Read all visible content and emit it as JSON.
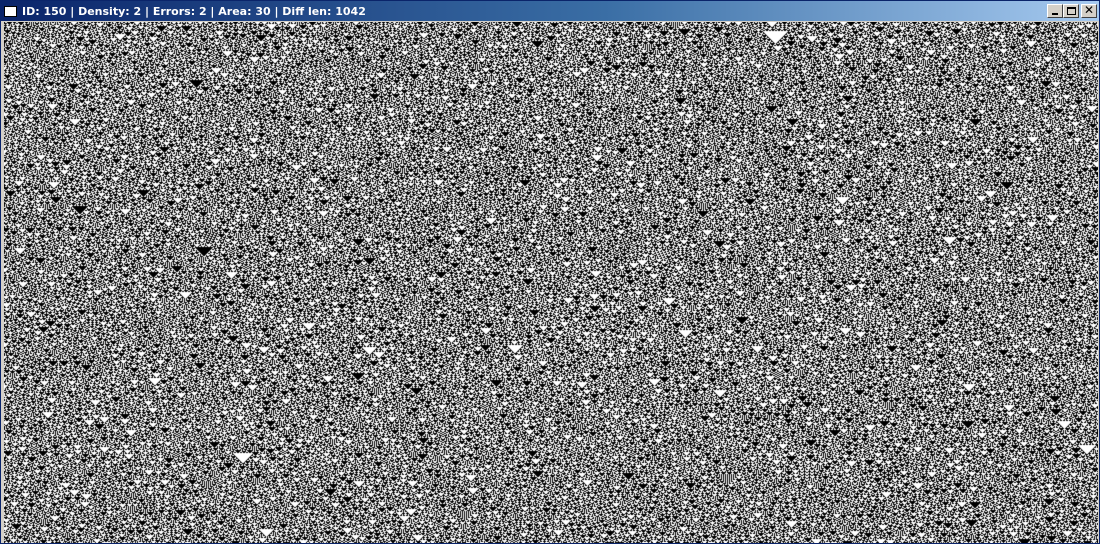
{
  "window": {
    "title": "ID: 150 | Density: 2 | Errors: 2 | Area: 30 | Diff len: 1042",
    "icon": "app-window-icon",
    "controls": {
      "minimize_icon": "minimize-icon",
      "maximize_icon": "maximize-icon",
      "close_icon": "close-icon"
    }
  },
  "automaton": {
    "rule": 150,
    "cell_on_color": "#000000",
    "cell_off_color": "#ffffff"
  },
  "colors": {
    "title_start": "#0a246a",
    "title_end": "#a6caf0",
    "title_text": "#ffffff",
    "chrome": "#d4d0c8"
  }
}
